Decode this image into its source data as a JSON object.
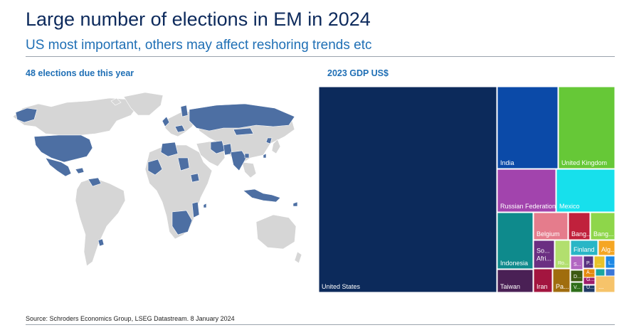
{
  "header": {
    "title": "Large number of elections in EM in 2024",
    "subtitle": "US most important, others may affect reshoring trends etc"
  },
  "map_panel": {
    "title": "48 elections due this year"
  },
  "treemap_panel": {
    "title": "2023 GDP US$"
  },
  "colors": {
    "map_election": "#4d6fa3",
    "map_other": "#d6d6d6",
    "title": "#0d2a5c",
    "accent": "#1f6fb5"
  },
  "chart_data": [
    {
      "type": "map",
      "title": "48 elections due this year",
      "highlighted_regions": [
        "United States",
        "Mexico",
        "Venezuela",
        "Panama",
        "Dominican Republic",
        "El Salvador",
        "Uruguay",
        "United Kingdom",
        "Finland",
        "Portugal",
        "Belgium",
        "Austria",
        "Lithuania",
        "Slovakia",
        "Croatia",
        "North Macedonia",
        "Romania",
        "Russian Federation",
        "Algeria",
        "Tunisia",
        "Senegal",
        "Mauritania",
        "Chad",
        "Ghana",
        "Togo",
        "Mali",
        "South Sudan",
        "Rwanda",
        "Mozambique",
        "Namibia",
        "Botswana",
        "South Africa",
        "Comoros",
        "Mauritius",
        "Iran",
        "Pakistan",
        "India",
        "Bangladesh",
        "Sri Lanka",
        "Mongolia",
        "South Korea",
        "Taiwan",
        "Indonesia",
        "Solomon Islands",
        "Azerbaijan",
        "Georgia",
        "Uzbekistan",
        "Kiribati"
      ]
    },
    {
      "type": "treemap",
      "title": "2023 GDP US$",
      "items": [
        {
          "label": "United States",
          "value": 26.95,
          "color": "#0c2a5b"
        },
        {
          "label": "India",
          "value": 3.73,
          "color": "#0b4aa8"
        },
        {
          "label": "United Kingdom",
          "value": 3.33,
          "color": "#66c837"
        },
        {
          "label": "Russian Federation",
          "value": 1.86,
          "color": "#a244ad"
        },
        {
          "label": "Mexico",
          "value": 1.81,
          "color": "#17e0ec"
        },
        {
          "label": "Indonesia",
          "value": 1.42,
          "color": "#0e8a8c"
        },
        {
          "label": "Belgium",
          "value": 0.63,
          "color": "#e57c8c"
        },
        {
          "label": "Taiwan",
          "value": 0.76,
          "color": "#4a2055"
        },
        {
          "label": "Bang...",
          "value": 0.45,
          "color": "#c0213c"
        },
        {
          "label": "Bang...",
          "value": 0.45,
          "color": "#8ed64a"
        },
        {
          "label": "So... Afri...",
          "value": 0.4,
          "color": "#6b2f82"
        },
        {
          "label": "Ro...",
          "value": 0.35,
          "color": "#b2df6e"
        },
        {
          "label": "Finland",
          "value": 0.3,
          "color": "#29b6c6"
        },
        {
          "label": "Alg...",
          "value": 0.24,
          "color": "#f5a623"
        },
        {
          "label": "Iran",
          "value": 0.37,
          "color": "#a3153f"
        },
        {
          "label": "Pa...",
          "value": 0.34,
          "color": "#a06d0e"
        },
        {
          "label": "S...",
          "value": 0.15,
          "color": "#b266c2"
        },
        {
          "label": "P...",
          "value": 0.13,
          "color": "#5a3280"
        },
        {
          "label": "...",
          "value": 0.08,
          "color": "#e8c22a"
        },
        {
          "label": "L...",
          "value": 0.08,
          "color": "#1e88e5"
        },
        {
          "label": "A...",
          "value": 0.08,
          "color": "#e58a0f"
        },
        {
          "label": "G...",
          "value": 0.07,
          "color": "#9e1d6b"
        },
        {
          "label": "D...",
          "value": 0.12,
          "color": "#3d5a12"
        },
        {
          "label": "V...",
          "value": 0.09,
          "color": "#2e6e1a"
        },
        {
          "label": "U...",
          "value": 0.07,
          "color": "#203a66"
        },
        {
          "label": "...",
          "value": 0.06,
          "color": "#f6c36a"
        },
        {
          "label": "",
          "value": 0.06,
          "color": "#19a6a0"
        },
        {
          "label": "",
          "value": 0.05,
          "color": "#3a76d8"
        }
      ]
    }
  ],
  "footer": {
    "source": "Source: Schroders Economics Group, LSEG Datastream. 8 January 2024"
  }
}
